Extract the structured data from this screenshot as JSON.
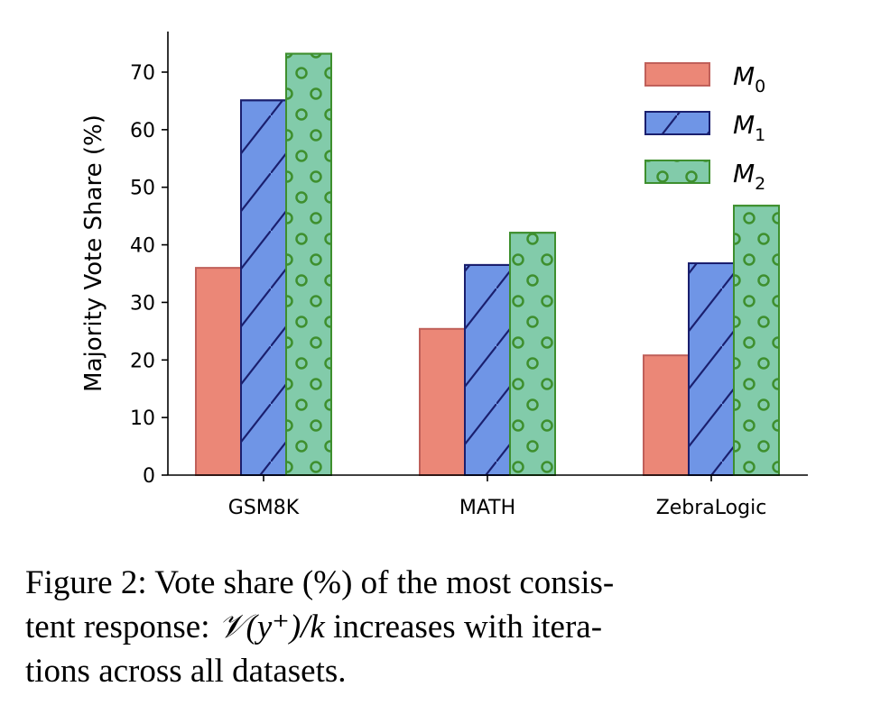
{
  "chart_data": {
    "type": "bar",
    "categories": [
      "GSM8K",
      "MATH",
      "ZebraLogic"
    ],
    "series": [
      {
        "name": "M0",
        "label_main": "M",
        "label_sub": "0",
        "values": [
          36.0,
          25.4,
          20.8
        ],
        "color": "#eb8777",
        "edge": "#c0605a",
        "hatch": "none"
      },
      {
        "name": "M1",
        "label_main": "M",
        "label_sub": "1",
        "values": [
          65.1,
          36.5,
          36.8
        ],
        "color": "#6f95e6",
        "edge": "#1a1f6e",
        "hatch": "diagonal"
      },
      {
        "name": "M2",
        "label_main": "M",
        "label_sub": "2",
        "values": [
          73.2,
          42.1,
          46.8
        ],
        "color": "#82cbaa",
        "edge": "#3e8f2e",
        "hatch": "circles"
      }
    ],
    "ylabel": "Majority Vote Share (%)",
    "xlabel": "",
    "ylim": [
      0,
      77
    ],
    "yticks": [
      "0",
      "10",
      "20",
      "30",
      "40",
      "50",
      "60",
      "70"
    ],
    "grid": false,
    "legend_position": "top-right"
  },
  "caption": {
    "prefix": "Figure 2: Vote share (%) of the most consis-",
    "line2_a": "tent response: ",
    "math": "𝒱(y⁺)/k",
    "line2_b": " increases with itera-",
    "line3": "tions across all datasets."
  }
}
